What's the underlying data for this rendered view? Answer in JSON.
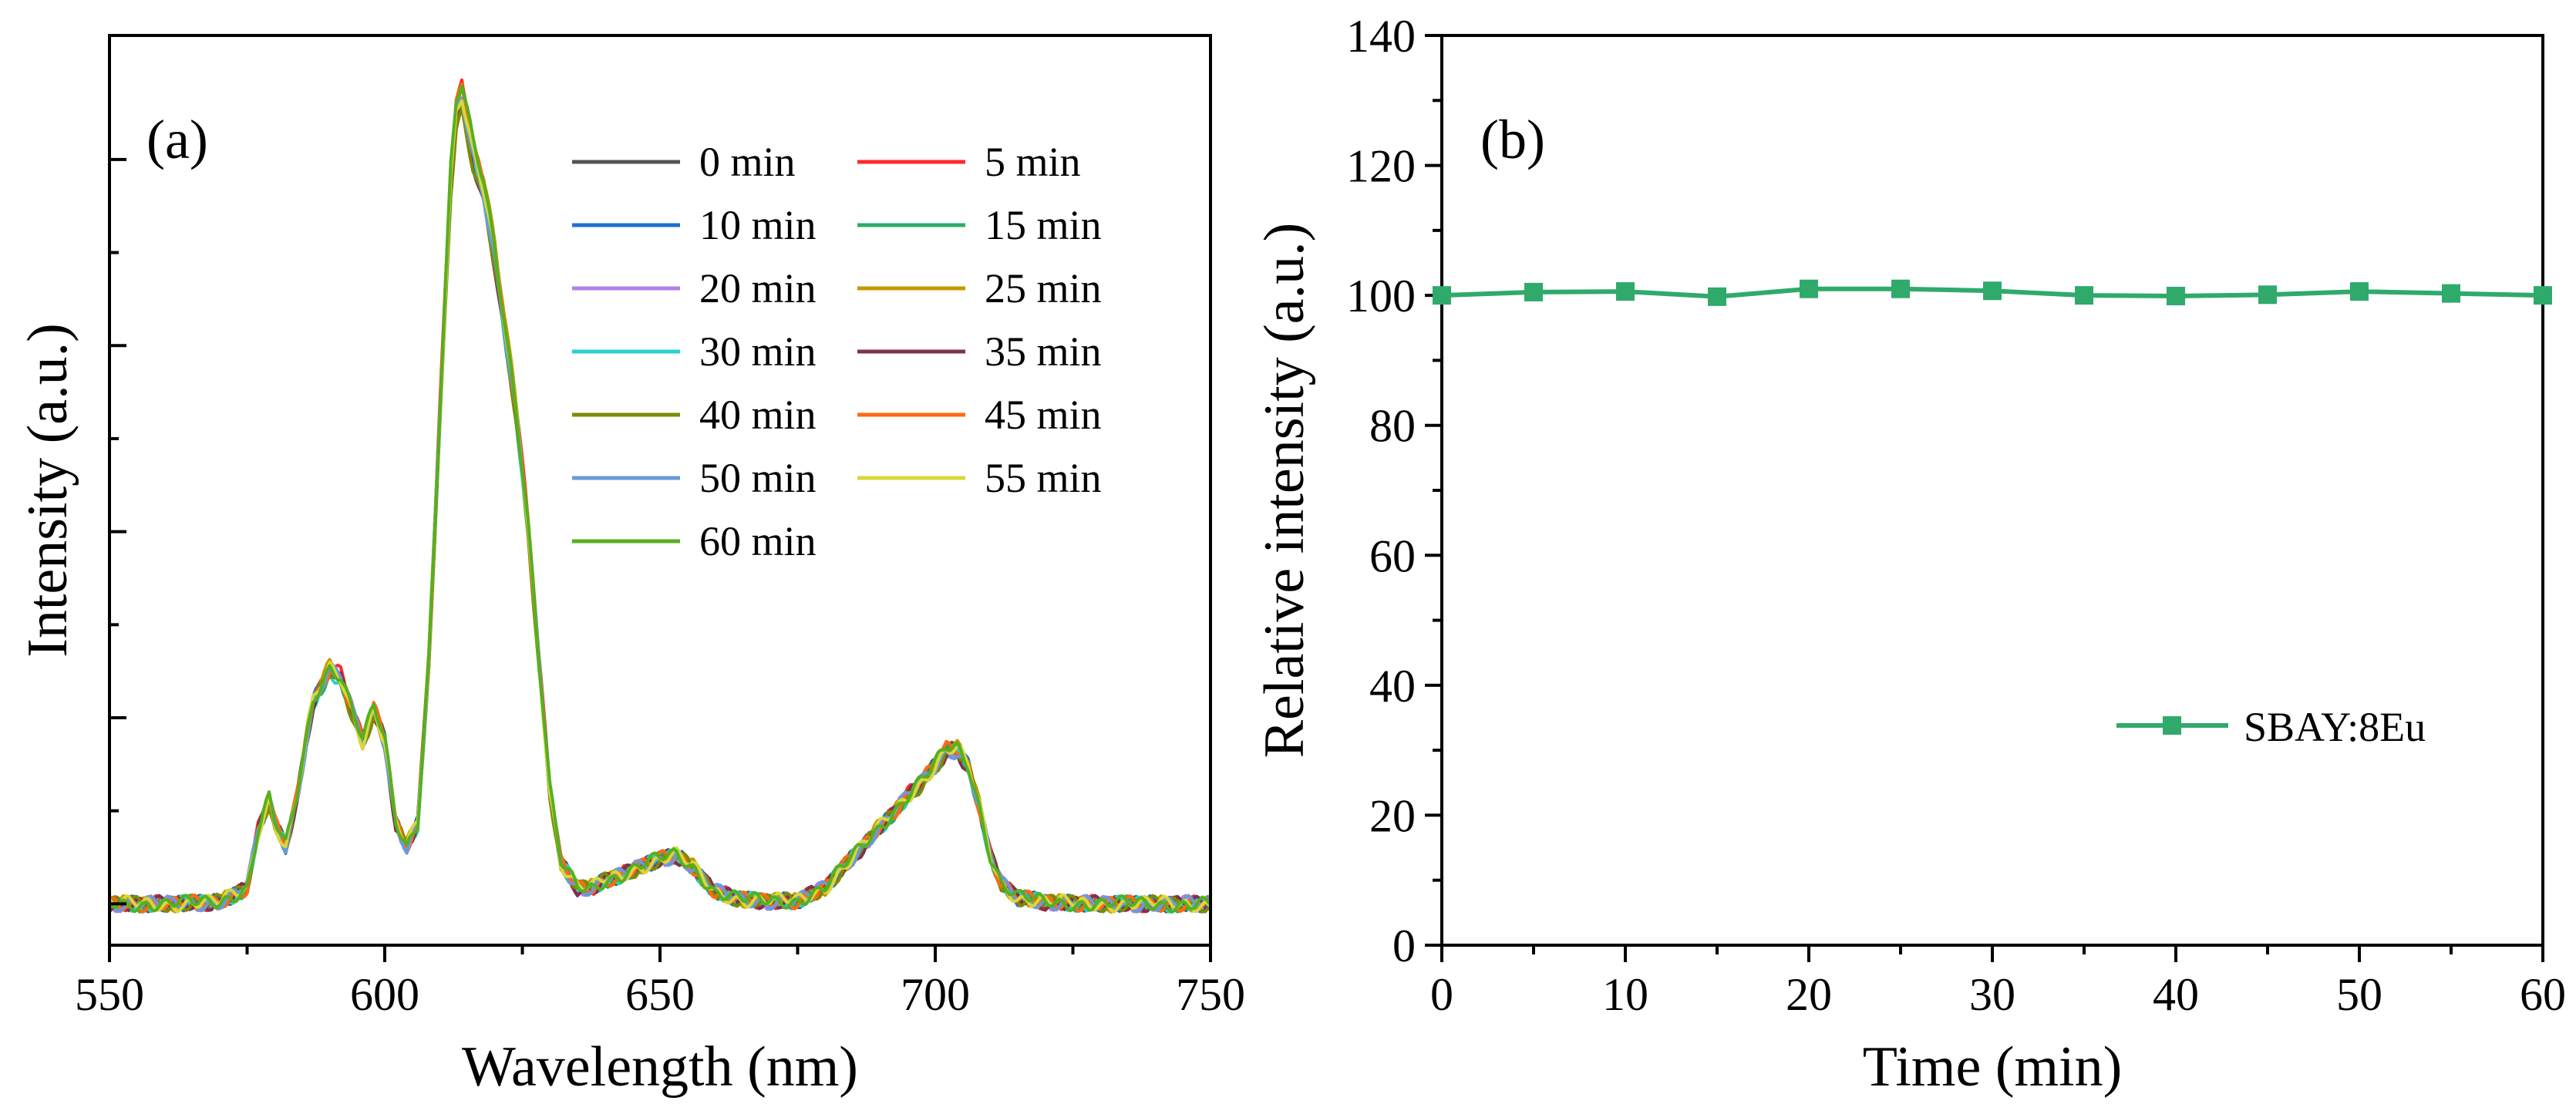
{
  "chart_data": [
    {
      "type": "line",
      "panel_label": "(a)",
      "xlabel": "Wavelength (nm)",
      "ylabel": "Intensity (a.u.)",
      "xlim": [
        550,
        750
      ],
      "ylim": [
        -0.05,
        1.05
      ],
      "x_ticks": [
        550,
        600,
        650,
        700,
        750
      ],
      "x_tick_labels": [
        "550",
        "600",
        "650",
        "700",
        "750"
      ],
      "y_tick_labels_shown": false,
      "legend_position": "top-right",
      "spectrum_profile": {
        "x": [
          550,
          560,
          570,
          575,
          577,
          579,
          580,
          582,
          584,
          587,
          590,
          592,
          594,
          596,
          598,
          600,
          602,
          604,
          606,
          608,
          610,
          612,
          613,
          614,
          616,
          618,
          620,
          622,
          624,
          626,
          628,
          630,
          632,
          635,
          638,
          640,
          643,
          646,
          650,
          653,
          656,
          660,
          665,
          670,
          675,
          680,
          684,
          688,
          692,
          696,
          700,
          702,
          704,
          706,
          708,
          710,
          712,
          715,
          720,
          730,
          740,
          750
        ],
        "y": [
          0.0,
          0.0,
          0.002,
          0.02,
          0.09,
          0.13,
          0.1,
          0.07,
          0.13,
          0.25,
          0.29,
          0.28,
          0.24,
          0.2,
          0.24,
          0.2,
          0.1,
          0.07,
          0.1,
          0.3,
          0.6,
          0.9,
          0.98,
          1.0,
          0.93,
          0.88,
          0.8,
          0.7,
          0.6,
          0.47,
          0.3,
          0.14,
          0.05,
          0.02,
          0.02,
          0.03,
          0.035,
          0.045,
          0.055,
          0.06,
          0.045,
          0.015,
          0.005,
          0.003,
          0.004,
          0.02,
          0.05,
          0.08,
          0.11,
          0.14,
          0.17,
          0.19,
          0.19,
          0.17,
          0.12,
          0.06,
          0.025,
          0.008,
          0.002,
          0.0,
          0.0,
          0.0
        ]
      },
      "series": [
        {
          "name": "0 min",
          "color": "#555555",
          "scale": 0.985
        },
        {
          "name": "5 min",
          "color": "#ff2a2a",
          "scale": 0.99
        },
        {
          "name": "10 min",
          "color": "#1f6fd1",
          "scale": 0.975
        },
        {
          "name": "15 min",
          "color": "#2faa6b",
          "scale": 0.97
        },
        {
          "name": "20 min",
          "color": "#b27fe6",
          "scale": 0.98
        },
        {
          "name": "25 min",
          "color": "#c99700",
          "scale": 0.995
        },
        {
          "name": "30 min",
          "color": "#2ad1d1",
          "scale": 0.97
        },
        {
          "name": "35 min",
          "color": "#7a3350",
          "scale": 0.965
        },
        {
          "name": "40 min",
          "color": "#7d8a00",
          "scale": 0.96
        },
        {
          "name": "45 min",
          "color": "#ff6a10",
          "scale": 0.985
        },
        {
          "name": "50 min",
          "color": "#6a9ad8",
          "scale": 0.975
        },
        {
          "name": "55 min",
          "color": "#d8d83a",
          "scale": 0.98
        },
        {
          "name": "60 min",
          "color": "#55b020",
          "scale": 0.99
        }
      ]
    },
    {
      "type": "line",
      "panel_label": "(b)",
      "xlabel": "Time (min)",
      "ylabel": "Relative intensity (a.u.)",
      "xlim": [
        0,
        60
      ],
      "ylim": [
        0,
        140
      ],
      "x_ticks": [
        0,
        10,
        20,
        30,
        40,
        50,
        60
      ],
      "x_tick_labels": [
        "0",
        "10",
        "20",
        "30",
        "40",
        "50",
        "60"
      ],
      "y_ticks": [
        0,
        20,
        40,
        60,
        80,
        100,
        120,
        140
      ],
      "y_tick_labels": [
        "0",
        "20",
        "40",
        "60",
        "80",
        "100",
        "120",
        "140"
      ],
      "legend_position": "middle-right",
      "series": [
        {
          "name": "SBAY:8Eu",
          "color": "#2faa6b",
          "marker": "square",
          "x": [
            0,
            5,
            10,
            15,
            20,
            25,
            30,
            35,
            40,
            45,
            50,
            55,
            60
          ],
          "y": [
            100,
            100.5,
            100.6,
            99.8,
            101,
            101,
            100.7,
            100,
            99.9,
            100.1,
            100.6,
            100.3,
            100
          ]
        }
      ]
    }
  ]
}
